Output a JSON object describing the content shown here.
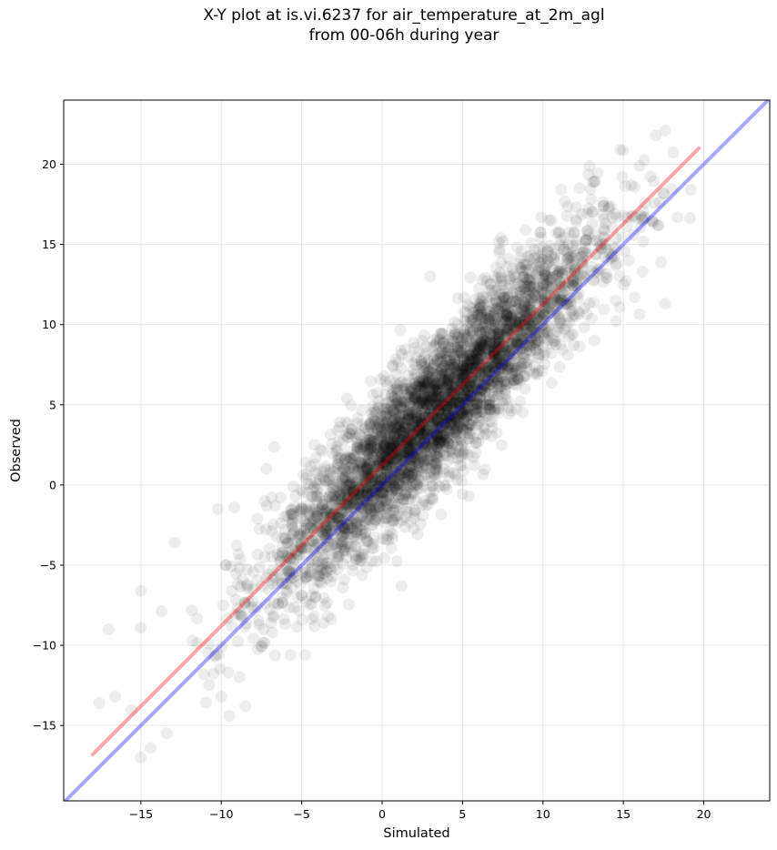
{
  "chart_data": {
    "type": "scatter",
    "title_line1": "X-Y plot at is.vi.6237 for air_temperature_at_2m_agl",
    "title_line2": "from 00-06h during year",
    "xlabel": "Simulated",
    "ylabel": "Observed",
    "xlim": [
      -19.8,
      24.1
    ],
    "ylim": [
      -19.7,
      24.0
    ],
    "xticks": [
      -15,
      -10,
      -5,
      0,
      5,
      10,
      15,
      20
    ],
    "yticks": [
      -15,
      -10,
      -5,
      0,
      5,
      10,
      15,
      20
    ],
    "grid": true,
    "point_color": "#000000",
    "point_alpha": 0.07,
    "identity_line": {
      "color": "#0000ff",
      "x": [
        -19.8,
        24.1
      ],
      "y": [
        -19.8,
        24.1
      ]
    },
    "fit_line": {
      "color": "#ff0000",
      "x": [
        -18.0,
        19.7
      ],
      "y": [
        -16.8,
        21.0
      ]
    },
    "sample_points": [
      [
        -17.0,
        -9.0
      ],
      [
        -15.0,
        -6.6
      ],
      [
        -15.0,
        -8.9
      ],
      [
        -16.6,
        -13.2
      ],
      [
        -15.0,
        -17.0
      ],
      [
        -14.4,
        -16.4
      ],
      [
        -17.6,
        -13.6
      ],
      [
        -12.9,
        -3.6
      ],
      [
        -10.2,
        -1.5
      ],
      [
        -9.2,
        -1.4
      ],
      [
        -9.5,
        -14.4
      ],
      [
        -10.0,
        -13.2
      ],
      [
        -8.5,
        -13.8
      ],
      [
        14.8,
        20.9
      ],
      [
        16.0,
        19.9
      ],
      [
        17.0,
        21.8
      ],
      [
        17.6,
        22.1
      ],
      [
        19.2,
        18.4
      ],
      [
        17.6,
        11.3
      ],
      [
        15.7,
        11.7
      ],
      [
        16.2,
        13.3
      ],
      [
        3.0,
        13.0
      ],
      [
        7.4,
        15.4
      ],
      [
        9.9,
        16.7
      ],
      [
        12.9,
        19.9
      ],
      [
        13.8,
        16.6
      ],
      [
        13.2,
        9.0
      ],
      [
        -2.2,
        5.4
      ],
      [
        -7.2,
        1.0
      ],
      [
        -5.7,
        -10.6
      ],
      [
        -4.8,
        -10.6
      ],
      [
        1.2,
        -6.3
      ],
      [
        5.4,
        -0.7
      ],
      [
        2.6,
        -1.0
      ],
      [
        13.0,
        17.8
      ]
    ]
  }
}
